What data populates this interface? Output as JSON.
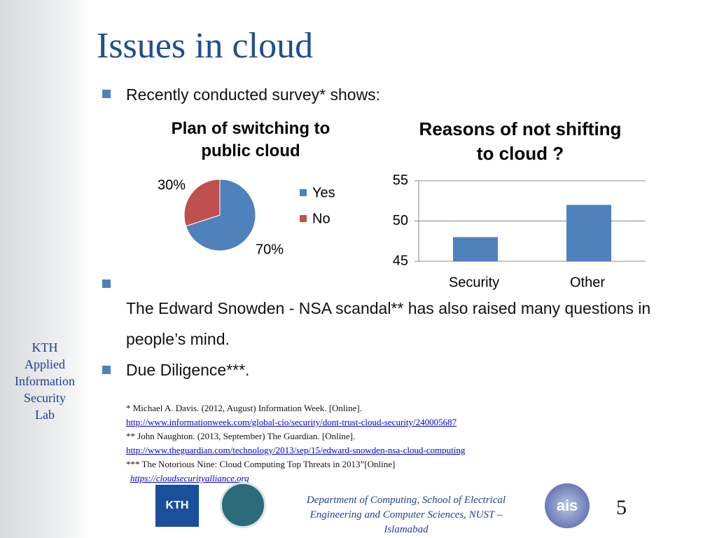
{
  "title": "Issues in cloud",
  "bullets": [
    "Recently conducted survey* shows:",
    "The Edward Snowden - NSA scandal** has also raised many questions in people’s mind.",
    "Due Diligence***."
  ],
  "sidebar": [
    "KTH",
    "Applied",
    "Information",
    "Security",
    "Lab"
  ],
  "references": [
    {
      "text": "* Michael A. Davis. (2012, August) Information Week. [Online].",
      "style": "plain"
    },
    {
      "text": "http://www.informationweek.com/global-cio/security/dont-trust-cloud-security/240005687",
      "style": "link"
    },
    {
      "text": "** John Naughton. (2013, September) The Guardian. [Online].",
      "style": "plain"
    },
    {
      "text": "http://www.theguardian.com/technology/2013/sep/15/edward-snowden-nsa-cloud-computing",
      "style": "link"
    },
    {
      "text": "*** The Notorious Nine: Cloud Computing Top Threats in 2013”[Online]",
      "style": "plain"
    },
    {
      "text": "https://cloudsecurityalliance.org",
      "style": "italic-link"
    }
  ],
  "footer": "Department of Computing, School of Electrical Engineering and Computer Sciences, NUST – Islamabad",
  "page_number": "5",
  "logos": [
    "KTH",
    "ais"
  ],
  "chart_data": [
    {
      "type": "pie",
      "title": "Plan of switching to public cloud",
      "categories": [
        "Yes",
        "No"
      ],
      "values": [
        70,
        30
      ],
      "value_labels": [
        "70%",
        "30%"
      ],
      "colors": [
        "#4f81bd",
        "#c0504d"
      ],
      "legend": "right"
    },
    {
      "type": "bar",
      "title": "Reasons of not shifting to cloud ?",
      "categories": [
        "Security",
        "Other"
      ],
      "values": [
        48,
        52
      ],
      "color": "#4f81bd",
      "ylim": [
        45,
        55
      ],
      "yticks": [
        45,
        50,
        55
      ],
      "grid": true
    }
  ]
}
